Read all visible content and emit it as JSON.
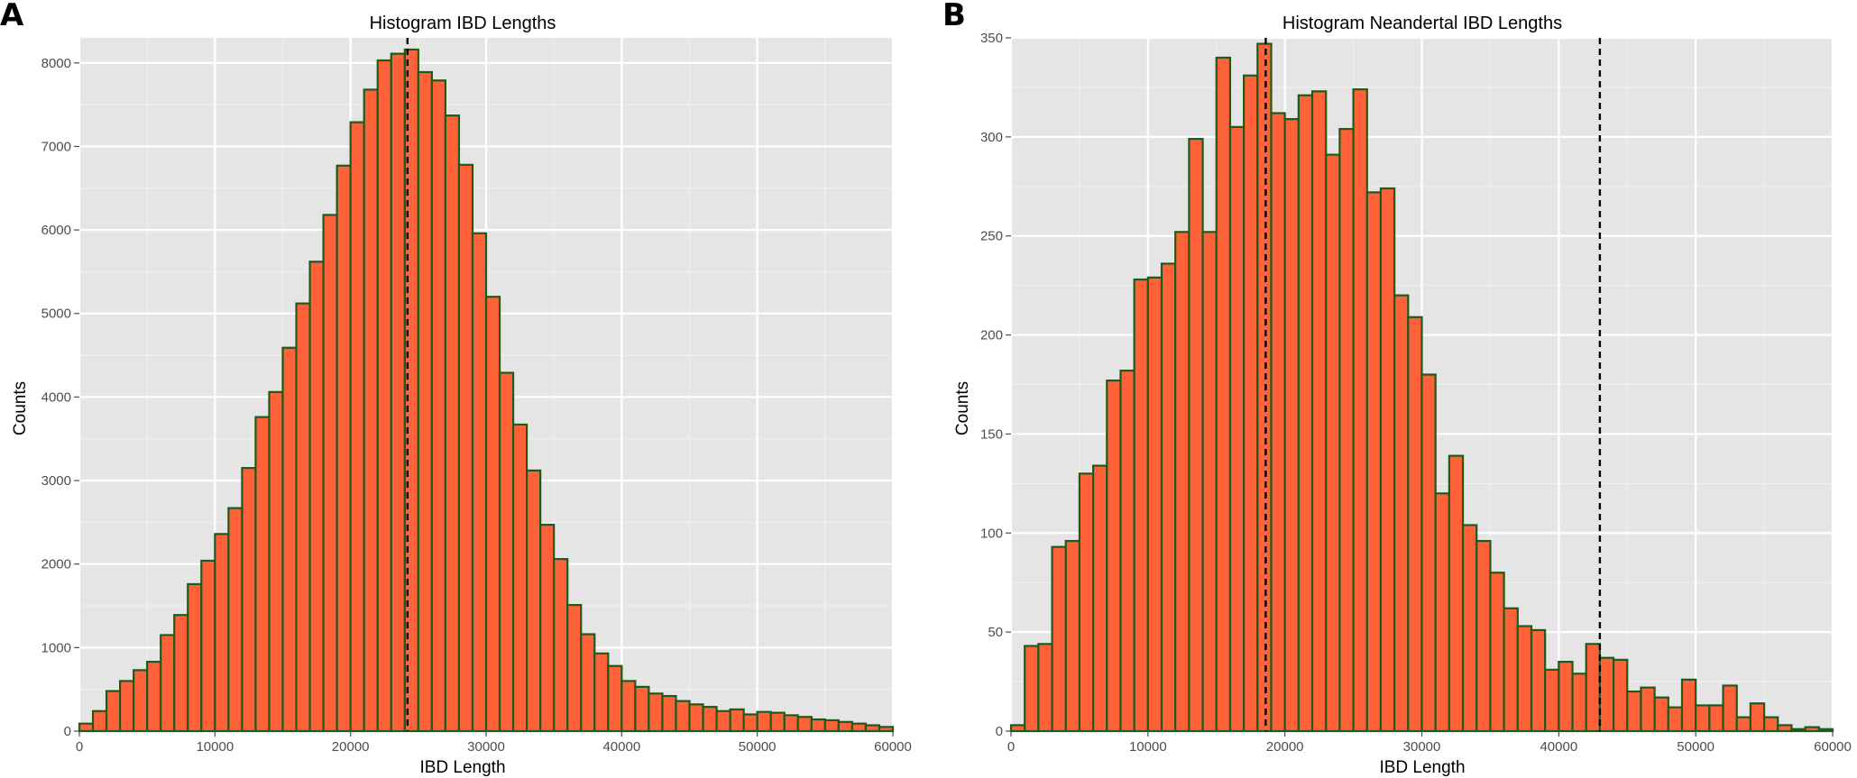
{
  "chart_data": [
    {
      "panel": "A",
      "type": "bar",
      "title": "Histogram IBD Lengths",
      "xlabel": "IBD Length",
      "ylabel": "Counts",
      "xlim": [
        0,
        60000
      ],
      "ylim": [
        0,
        8300
      ],
      "xticks": [
        0,
        10000,
        20000,
        30000,
        40000,
        50000,
        60000
      ],
      "yticks": [
        0,
        1000,
        2000,
        3000,
        4000,
        5000,
        6000,
        7000,
        8000
      ],
      "bin_width": 1000,
      "bin_start": 0,
      "values": [
        90,
        240,
        480,
        600,
        730,
        830,
        1150,
        1390,
        1760,
        2040,
        2360,
        2670,
        3150,
        3760,
        4060,
        4590,
        5120,
        5620,
        6180,
        6770,
        7290,
        7680,
        8030,
        8110,
        8160,
        7890,
        7790,
        7370,
        6780,
        5960,
        5200,
        4290,
        3670,
        3120,
        2470,
        2060,
        1510,
        1160,
        930,
        780,
        600,
        530,
        450,
        420,
        360,
        320,
        290,
        240,
        260,
        200,
        230,
        220,
        190,
        170,
        140,
        130,
        110,
        90,
        70,
        50
      ],
      "reference_lines": [
        24200
      ],
      "grid": true,
      "legend": "none"
    },
    {
      "panel": "B",
      "type": "bar",
      "title": "Histogram Neandertal IBD Lengths",
      "xlabel": "IBD Length",
      "ylabel": "Counts",
      "xlim": [
        0,
        60000
      ],
      "ylim": [
        0,
        350
      ],
      "xticks": [
        0,
        10000,
        20000,
        30000,
        40000,
        50000,
        60000
      ],
      "yticks": [
        0,
        50,
        100,
        150,
        200,
        250,
        300,
        350
      ],
      "bin_width": 1000,
      "bin_start": 0,
      "values": [
        3,
        43,
        44,
        93,
        96,
        130,
        134,
        177,
        182,
        228,
        229,
        236,
        252,
        299,
        252,
        340,
        305,
        331,
        347,
        312,
        309,
        321,
        323,
        291,
        304,
        324,
        272,
        274,
        220,
        209,
        180,
        120,
        139,
        104,
        96,
        80,
        62,
        53,
        51,
        31,
        35,
        29,
        44,
        37,
        36,
        20,
        22,
        17,
        12,
        26,
        13,
        13,
        23,
        7,
        14,
        7,
        3,
        1,
        2,
        1
      ],
      "reference_lines": [
        18600,
        43000
      ],
      "grid": true,
      "legend": "none"
    }
  ]
}
